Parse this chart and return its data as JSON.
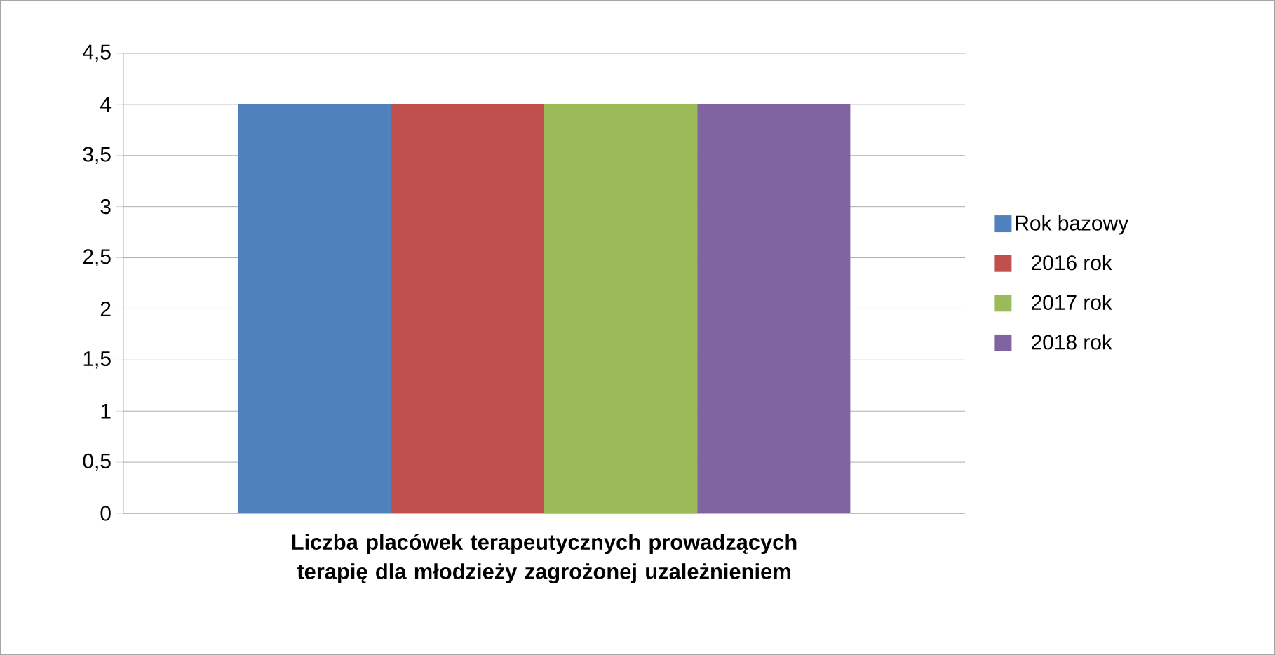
{
  "chart_data": {
    "type": "bar",
    "categories": [
      "Liczba placówek terapeutycznych prowadzących terapię dla młodzieży zagrożonej uzależnieniem"
    ],
    "series": [
      {
        "name": "Rok bazowy",
        "color": "#4f81bd",
        "values": [
          4
        ]
      },
      {
        "name": "2016 rok",
        "color": "#c0504d",
        "values": [
          4
        ]
      },
      {
        "name": "2017 rok",
        "color": "#9bbb59",
        "values": [
          4
        ]
      },
      {
        "name": "2018 rok",
        "color": "#8064a2",
        "values": [
          4
        ]
      }
    ],
    "ylim": [
      0,
      4.5
    ],
    "yticks": [
      0,
      {
        "value": 0.5,
        "label": "0,5"
      },
      1,
      {
        "value": 1.5,
        "label": "1,5"
      },
      2,
      {
        "value": 2.5,
        "label": "2,5"
      },
      3,
      {
        "value": 3.5,
        "label": "3,5"
      },
      4,
      {
        "value": 4.5,
        "label": "4,5"
      }
    ],
    "grid": "y",
    "legend": "right"
  }
}
